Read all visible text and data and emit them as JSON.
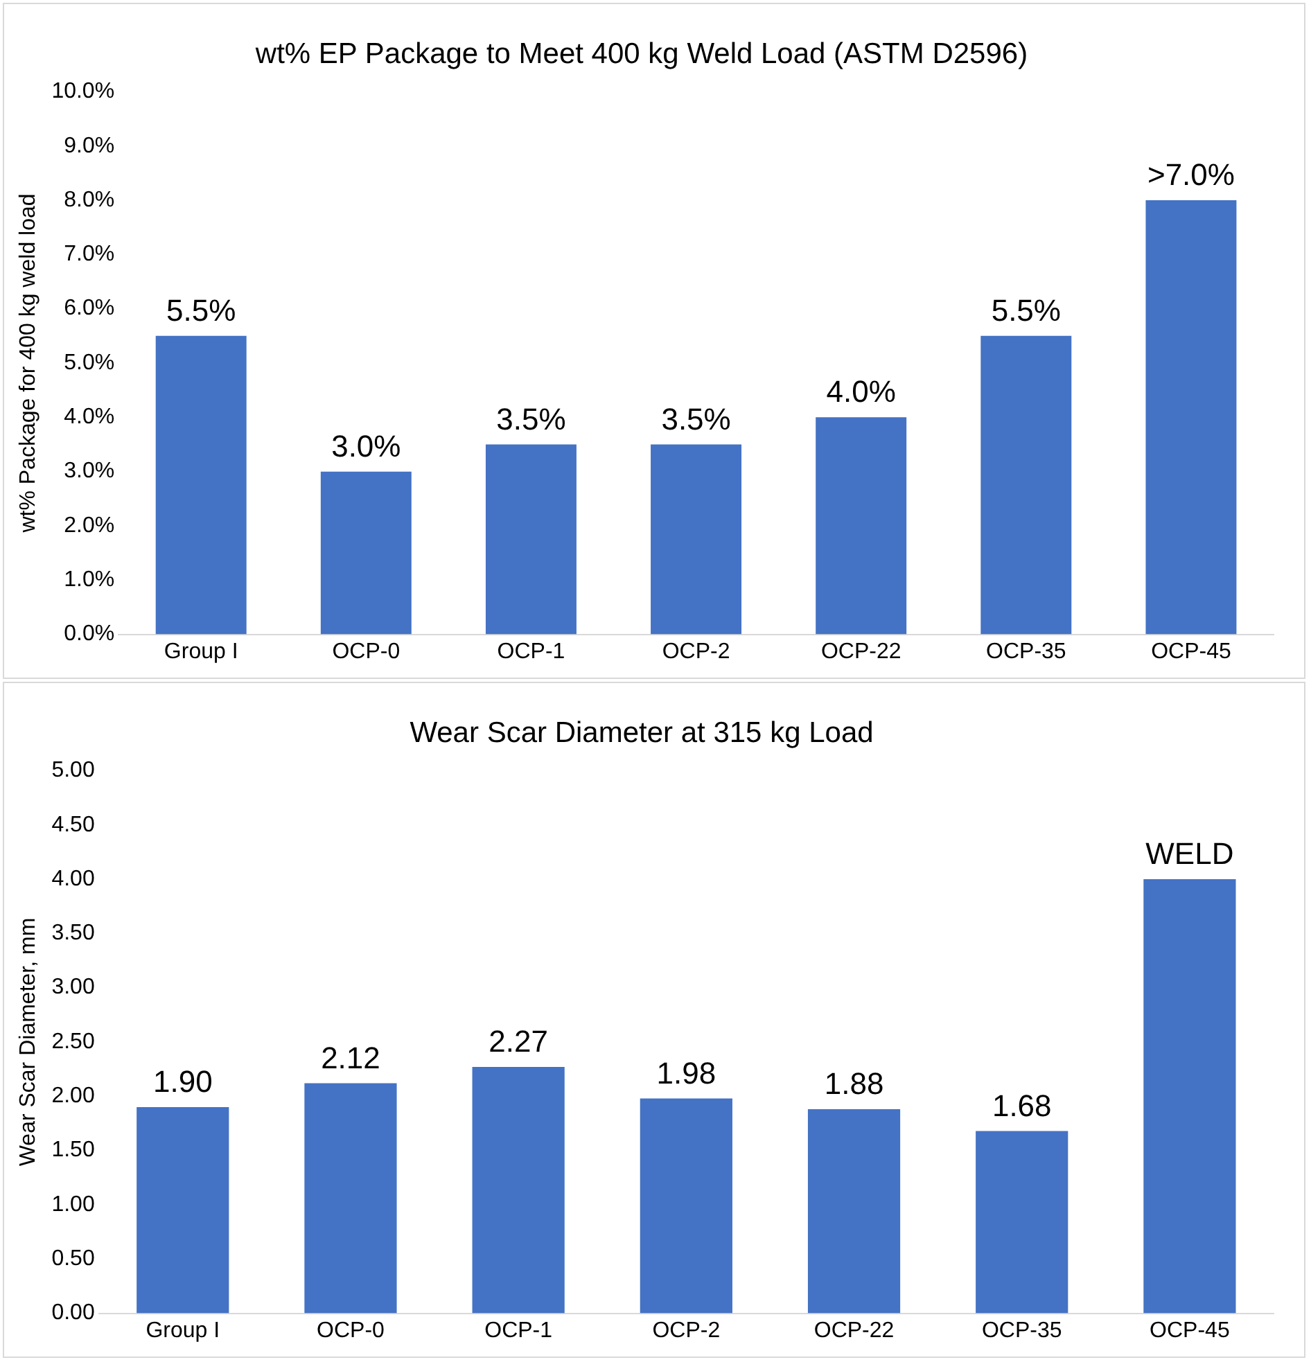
{
  "chart_data": [
    {
      "type": "bar",
      "title": "wt% EP Package to Meet 400 kg Weld Load (ASTM D2596)",
      "ylabel": "wt% Package for 400 kg weld load",
      "categories": [
        "Group I",
        "OCP-0",
        "OCP-1",
        "OCP-2",
        "OCP-22",
        "OCP-35",
        "OCP-45"
      ],
      "color": "#4472c4",
      "values": [
        5.5,
        3.0,
        3.5,
        3.5,
        4.0,
        5.5,
        8.0
      ],
      "value_labels": [
        "5.5%",
        "3.0%",
        "3.5%",
        "3.5%",
        "4.0%",
        "5.5%",
        ">7.0%"
      ],
      "ylim": [
        0,
        10
      ],
      "yticks": [
        {
          "value": 0,
          "label": "0.0%"
        },
        {
          "value": 1,
          "label": "1.0%"
        },
        {
          "value": 2,
          "label": "2.0%"
        },
        {
          "value": 3,
          "label": "3.0%"
        },
        {
          "value": 4,
          "label": "4.0%"
        },
        {
          "value": 5,
          "label": "5.0%"
        },
        {
          "value": 6,
          "label": "6.0%"
        },
        {
          "value": 7,
          "label": "7.0%"
        },
        {
          "value": 8,
          "label": "8.0%"
        },
        {
          "value": 9,
          "label": "9.0%"
        },
        {
          "value": 10,
          "label": "10.0%"
        }
      ],
      "grid": false,
      "legend": false
    },
    {
      "type": "bar",
      "title": "Wear Scar Diameter at 315 kg Load",
      "ylabel": "Wear Scar Diameter, mm",
      "categories": [
        "Group I",
        "OCP-0",
        "OCP-1",
        "OCP-2",
        "OCP-22",
        "OCP-35",
        "OCP-45"
      ],
      "color": "#4472c4",
      "values": [
        1.9,
        2.12,
        2.27,
        1.98,
        1.88,
        1.68,
        4.0
      ],
      "value_labels": [
        "1.90",
        "2.12",
        "2.27",
        "1.98",
        "1.88",
        "1.68",
        "WELD"
      ],
      "ylim": [
        0,
        5
      ],
      "yticks": [
        {
          "value": 0,
          "label": "0.00"
        },
        {
          "value": 0.5,
          "label": "0.50"
        },
        {
          "value": 1,
          "label": "1.00"
        },
        {
          "value": 1.5,
          "label": "1.50"
        },
        {
          "value": 2,
          "label": "2.00"
        },
        {
          "value": 2.5,
          "label": "2.50"
        },
        {
          "value": 3,
          "label": "3.00"
        },
        {
          "value": 3.5,
          "label": "3.50"
        },
        {
          "value": 4,
          "label": "4.00"
        },
        {
          "value": 4.5,
          "label": "4.50"
        },
        {
          "value": 5,
          "label": "5.00"
        }
      ],
      "grid": false,
      "legend": false
    }
  ]
}
